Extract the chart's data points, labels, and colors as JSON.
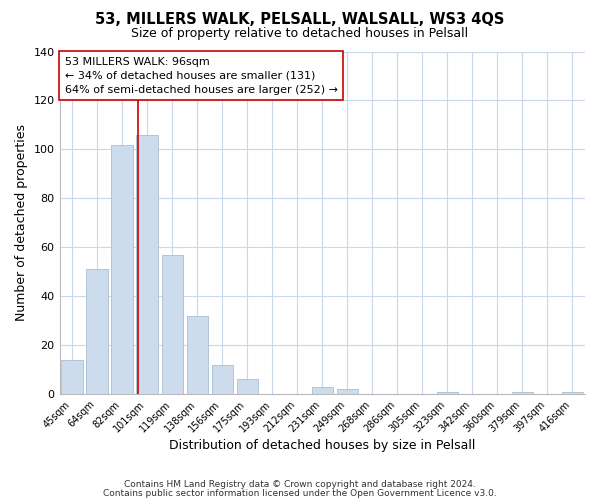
{
  "title": "53, MILLERS WALK, PELSALL, WALSALL, WS3 4QS",
  "subtitle": "Size of property relative to detached houses in Pelsall",
  "xlabel": "Distribution of detached houses by size in Pelsall",
  "ylabel": "Number of detached properties",
  "bar_color": "#ccdcec",
  "bar_edge_color": "#a8c0d4",
  "categories": [
    "45sqm",
    "64sqm",
    "82sqm",
    "101sqm",
    "119sqm",
    "138sqm",
    "156sqm",
    "175sqm",
    "193sqm",
    "212sqm",
    "231sqm",
    "249sqm",
    "268sqm",
    "286sqm",
    "305sqm",
    "323sqm",
    "342sqm",
    "360sqm",
    "379sqm",
    "397sqm",
    "416sqm"
  ],
  "values": [
    14,
    51,
    102,
    106,
    57,
    32,
    12,
    6,
    0,
    0,
    3,
    2,
    0,
    0,
    0,
    1,
    0,
    0,
    1,
    0,
    1
  ],
  "ylim": [
    0,
    140
  ],
  "yticks": [
    0,
    20,
    40,
    60,
    80,
    100,
    120,
    140
  ],
  "property_line_color": "#cc0000",
  "annotation_line1": "53 MILLERS WALK: 96sqm",
  "annotation_line2": "← 34% of detached houses are smaller (131)",
  "annotation_line3": "64% of semi-detached houses are larger (252) →",
  "annotation_box_color": "#ffffff",
  "annotation_box_edge": "#cc0000",
  "footer_line1": "Contains HM Land Registry data © Crown copyright and database right 2024.",
  "footer_line2": "Contains public sector information licensed under the Open Government Licence v3.0.",
  "background_color": "#ffffff",
  "grid_color": "#c8d8ea"
}
